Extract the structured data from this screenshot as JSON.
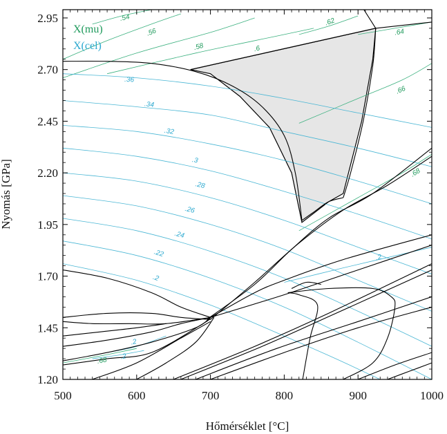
{
  "chart_data": {
    "type": "line",
    "title": "",
    "xlabel": "Hőmérséklet [°C]",
    "ylabel": "Nyomás [GPa]",
    "xlim": [
      500,
      1000
    ],
    "ylim": [
      1.2,
      2.99
    ],
    "xticks": [
      500,
      600,
      700,
      800,
      900,
      1000
    ],
    "xtick_labels": [
      "500",
      "600",
      "700",
      "800",
      "900",
      "1000"
    ],
    "yticks": [
      1.2,
      1.45,
      1.7,
      1.95,
      2.2,
      2.45,
      2.7,
      2.95
    ],
    "ytick_labels": [
      "1.20",
      "1.45",
      "1.70",
      "1.95",
      "2.20",
      "2.45",
      "2.70",
      "2.95"
    ],
    "grid": false,
    "legend": {
      "placement": "top-left",
      "entries": [
        {
          "label": "X(mu)",
          "color": "#1f9a5c"
        },
        {
          "label": "X(cel)",
          "color": "#2aa8cf"
        }
      ]
    },
    "colors": {
      "mu": "#3ab07e",
      "cel": "#49b6d4",
      "mu_label": "#1f9a5c",
      "cel_label": "#2aa8cf",
      "field": "#e6e6e6"
    },
    "stable_field": {
      "description": "shaded stability field",
      "points": [
        [
          673,
          2.7
        ],
        [
          924,
          2.9
        ],
        [
          920,
          2.75
        ],
        [
          905,
          2.45
        ],
        [
          880,
          2.1
        ],
        [
          860,
          2.06
        ],
        [
          824,
          1.96
        ],
        [
          810,
          2.2
        ],
        [
          780,
          2.42
        ],
        [
          740,
          2.57
        ],
        [
          700,
          2.68
        ]
      ]
    },
    "isopleths_mu": [
      {
        "label": ".54",
        "points": [
          [
            540,
            2.92
          ],
          [
            580,
            2.96
          ],
          [
            620,
            2.99
          ]
        ],
        "label_at": [
          584,
          2.95
        ]
      },
      {
        "label": ".56",
        "points": [
          [
            500,
            2.75
          ],
          [
            560,
            2.84
          ],
          [
            620,
            2.92
          ],
          [
            660,
            2.97
          ]
        ],
        "label_at": [
          620,
          2.88
        ]
      },
      {
        "label": ".58",
        "points": [
          [
            500,
            2.66
          ],
          [
            600,
            2.78
          ],
          [
            700,
            2.88
          ],
          [
            760,
            2.95
          ]
        ],
        "label_at": [
          684,
          2.81
        ]
      },
      {
        "label": ".6",
        "points": [
          [
            560,
            2.68
          ],
          [
            680,
            2.78
          ],
          [
            760,
            2.84
          ],
          [
            840,
            2.9
          ]
        ],
        "label_at": [
          763,
          2.8
        ]
      },
      {
        "label": ".62",
        "points": [
          [
            820,
            2.87
          ],
          [
            860,
            2.91
          ],
          [
            900,
            2.96
          ]
        ],
        "label_at": [
          862,
          2.93
        ]
      },
      {
        "label": ".64",
        "points": [
          [
            900,
            2.87
          ],
          [
            950,
            2.9
          ],
          [
            1000,
            2.93
          ]
        ],
        "label_at": [
          956,
          2.88
        ]
      },
      {
        "label": ".66",
        "points": [
          [
            820,
            2.44
          ],
          [
            900,
            2.56
          ],
          [
            960,
            2.65
          ],
          [
            1000,
            2.73
          ]
        ],
        "label_at": [
          958,
          2.6
        ]
      },
      {
        "label": ".68",
        "points": [
          [
            820,
            1.92
          ],
          [
            900,
            2.08
          ],
          [
            960,
            2.2
          ],
          [
            1000,
            2.29
          ]
        ],
        "label_at": [
          978,
          2.2
        ]
      },
      {
        "label": ".68",
        "points": [
          [
            500,
            1.28
          ],
          [
            560,
            1.32
          ],
          [
            600,
            1.35
          ]
        ],
        "label_at": [
          553,
          1.29
        ]
      }
    ],
    "isopleths_cel": [
      {
        "label": ".36",
        "points": [
          [
            500,
            2.68
          ],
          [
            600,
            2.66
          ],
          [
            700,
            2.62
          ],
          [
            800,
            2.56
          ],
          [
            900,
            2.49
          ],
          [
            1000,
            2.42
          ]
        ],
        "label_at": [
          590,
          2.65
        ]
      },
      {
        "label": ".34",
        "points": [
          [
            500,
            2.55
          ],
          [
            600,
            2.52
          ],
          [
            700,
            2.48
          ],
          [
            800,
            2.4
          ],
          [
            900,
            2.32
          ],
          [
            1000,
            2.23
          ]
        ],
        "label_at": [
          617,
          2.53
        ]
      },
      {
        "label": ".32",
        "points": [
          [
            500,
            2.43
          ],
          [
            600,
            2.4
          ],
          [
            700,
            2.34
          ],
          [
            800,
            2.26
          ],
          [
            900,
            2.16
          ],
          [
            1000,
            2.05
          ]
        ],
        "label_at": [
          644,
          2.4
        ]
      },
      {
        "label": ".3",
        "points": [
          [
            500,
            2.32
          ],
          [
            600,
            2.28
          ],
          [
            700,
            2.21
          ],
          [
            800,
            2.11
          ],
          [
            900,
            2.0
          ],
          [
            1000,
            1.88
          ]
        ],
        "label_at": [
          679,
          2.26
        ]
      },
      {
        "label": ".28",
        "points": [
          [
            500,
            2.2
          ],
          [
            600,
            2.16
          ],
          [
            700,
            2.08
          ],
          [
            800,
            1.97
          ],
          [
            900,
            1.84
          ],
          [
            1000,
            1.71
          ]
        ],
        "label_at": [
          686,
          2.14
        ]
      },
      {
        "label": ".26",
        "points": [
          [
            500,
            2.09
          ],
          [
            600,
            2.04
          ],
          [
            700,
            1.95
          ],
          [
            800,
            1.83
          ],
          [
            900,
            1.68
          ],
          [
            1000,
            1.53
          ]
        ],
        "label_at": [
          672,
          2.02
        ]
      },
      {
        "label": ".24",
        "points": [
          [
            500,
            1.98
          ],
          [
            600,
            1.92
          ],
          [
            700,
            1.82
          ],
          [
            800,
            1.69
          ],
          [
            900,
            1.53
          ],
          [
            1000,
            1.36
          ]
        ],
        "label_at": [
          658,
          1.9
        ]
      },
      {
        "label": ".22",
        "points": [
          [
            500,
            1.87
          ],
          [
            600,
            1.8
          ],
          [
            700,
            1.69
          ],
          [
            800,
            1.55
          ],
          [
            900,
            1.38
          ],
          [
            1000,
            1.2
          ]
        ],
        "label_at": [
          630,
          1.81
        ]
      },
      {
        "label": ".2",
        "points": [
          [
            500,
            1.76
          ],
          [
            600,
            1.68
          ],
          [
            700,
            1.56
          ],
          [
            800,
            1.41
          ],
          [
            870,
            1.3
          ],
          [
            930,
            1.2
          ]
        ],
        "label_at": [
          626,
          1.69
        ]
      },
      {
        "label": ".2",
        "points": [
          [
            800,
            1.67
          ],
          [
            880,
            1.74
          ],
          [
            940,
            1.79
          ],
          [
            1000,
            1.84
          ]
        ],
        "label_at": [
          928,
          1.79
        ]
      },
      {
        "label": ".2",
        "points": [
          [
            560,
            1.33
          ],
          [
            600,
            1.36
          ],
          [
            640,
            1.41
          ]
        ],
        "label_at": [
          596,
          1.38
        ]
      },
      {
        "label": ".2",
        "points": [
          [
            540,
            1.3
          ],
          [
            580,
            1.32
          ],
          [
            610,
            1.34
          ]
        ],
        "label_at": [
          582,
          1.31
        ]
      }
    ],
    "phase_boundaries": [
      [
        [
          500,
          2.74
        ],
        [
          560,
          2.74
        ],
        [
          620,
          2.73
        ],
        [
          680,
          2.69
        ],
        [
          730,
          2.62
        ],
        [
          770,
          2.52
        ],
        [
          800,
          2.38
        ],
        [
          815,
          2.2
        ],
        [
          824,
          1.97
        ]
      ],
      [
        [
          673,
          2.7
        ],
        [
          924,
          2.9
        ]
      ],
      [
        [
          924,
          2.9
        ],
        [
          1000,
          2.93
        ]
      ],
      [
        [
          908,
          2.99
        ],
        [
          924,
          2.9
        ]
      ],
      [
        [
          924,
          2.9
        ],
        [
          920,
          2.72
        ],
        [
          907,
          2.45
        ],
        [
          890,
          2.2
        ],
        [
          880,
          2.08
        ]
      ],
      [
        [
          695,
          1.49
        ],
        [
          760,
          1.66
        ],
        [
          810,
          1.83
        ],
        [
          860,
          1.98
        ],
        [
          920,
          2.1
        ],
        [
          1000,
          2.32
        ]
      ],
      [
        [
          700,
          1.49
        ],
        [
          760,
          1.67
        ],
        [
          820,
          1.86
        ],
        [
          880,
          2.02
        ],
        [
          940,
          2.14
        ],
        [
          1000,
          2.28
        ]
      ],
      [
        [
          700,
          1.5
        ],
        [
          760,
          1.62
        ],
        [
          800,
          1.68
        ],
        [
          880,
          1.78
        ],
        [
          1000,
          1.9
        ]
      ],
      [
        [
          700,
          1.5
        ],
        [
          800,
          1.61
        ],
        [
          900,
          1.73
        ],
        [
          1000,
          1.85
        ]
      ],
      [
        [
          500,
          1.73
        ],
        [
          560,
          1.69
        ],
        [
          620,
          1.62
        ],
        [
          660,
          1.55
        ],
        [
          700,
          1.5
        ]
      ],
      [
        [
          500,
          1.5
        ],
        [
          560,
          1.52
        ],
        [
          620,
          1.52
        ],
        [
          660,
          1.5
        ],
        [
          700,
          1.49
        ]
      ],
      [
        [
          500,
          1.48
        ],
        [
          540,
          1.47
        ],
        [
          590,
          1.47
        ],
        [
          640,
          1.47
        ],
        [
          700,
          1.5
        ]
      ],
      [
        [
          500,
          1.41
        ],
        [
          550,
          1.43
        ],
        [
          600,
          1.45
        ],
        [
          640,
          1.47
        ]
      ],
      [
        [
          500,
          1.36
        ],
        [
          560,
          1.39
        ],
        [
          620,
          1.43
        ],
        [
          660,
          1.47
        ],
        [
          700,
          1.5
        ]
      ],
      [
        [
          500,
          1.29
        ],
        [
          560,
          1.33
        ],
        [
          620,
          1.38
        ],
        [
          680,
          1.45
        ],
        [
          700,
          1.5
        ]
      ],
      [
        [
          500,
          1.27
        ],
        [
          560,
          1.3
        ],
        [
          620,
          1.33
        ],
        [
          690,
          1.47
        ],
        [
          700,
          1.5
        ]
      ],
      [
        [
          540,
          1.2
        ],
        [
          600,
          1.28
        ],
        [
          660,
          1.4
        ],
        [
          700,
          1.48
        ]
      ],
      [
        [
          600,
          1.2
        ],
        [
          640,
          1.28
        ],
        [
          680,
          1.38
        ],
        [
          705,
          1.5
        ]
      ],
      [
        [
          650,
          1.2
        ],
        [
          760,
          1.36
        ],
        [
          860,
          1.52
        ],
        [
          1000,
          1.76
        ]
      ],
      [
        [
          660,
          1.2
        ],
        [
          770,
          1.36
        ],
        [
          870,
          1.52
        ],
        [
          1000,
          1.73
        ]
      ],
      [
        [
          680,
          1.2
        ],
        [
          790,
          1.35
        ],
        [
          900,
          1.48
        ],
        [
          1000,
          1.6
        ]
      ],
      [
        [
          700,
          1.2
        ],
        [
          800,
          1.33
        ],
        [
          900,
          1.45
        ],
        [
          1000,
          1.55
        ]
      ],
      [
        [
          805,
          1.62
        ],
        [
          860,
          1.64
        ],
        [
          920,
          1.64
        ],
        [
          945,
          1.6
        ],
        [
          950,
          1.55
        ],
        [
          940,
          1.4
        ],
        [
          920,
          1.28
        ],
        [
          880,
          1.2
        ]
      ],
      [
        [
          805,
          1.62
        ],
        [
          820,
          1.61
        ],
        [
          845,
          1.56
        ],
        [
          835,
          1.4
        ],
        [
          825,
          1.2
        ]
      ],
      [
        [
          810,
          1.64
        ],
        [
          830,
          1.67
        ],
        [
          850,
          1.66
        ]
      ],
      [
        [
          900,
          1.2
        ],
        [
          950,
          1.27
        ],
        [
          1000,
          1.33
        ]
      ],
      [
        [
          940,
          1.2
        ],
        [
          970,
          1.24
        ],
        [
          1000,
          1.28
        ]
      ],
      [
        [
          880,
          2.08
        ],
        [
          860,
          2.06
        ],
        [
          840,
          2.01
        ],
        [
          824,
          1.97
        ]
      ]
    ]
  }
}
